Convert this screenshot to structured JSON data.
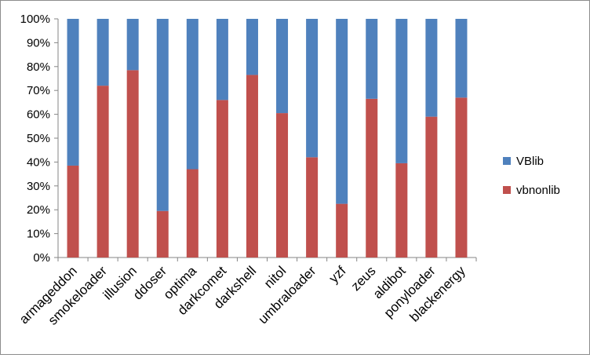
{
  "chart_data": {
    "type": "bar",
    "stacked": true,
    "percent_stacked": true,
    "categories": [
      "armageddon",
      "smokeloader",
      "illusion",
      "ddoser",
      "optima",
      "darkcomet",
      "darkshell",
      "nitol",
      "umbraloader",
      "yzf",
      "zeus",
      "aldibot",
      "ponyloader",
      "blackenergy"
    ],
    "series": [
      {
        "name": "vbnonlib",
        "color": "#c0504d",
        "values": [
          38.5,
          72,
          78.5,
          19.5,
          37,
          66,
          76.5,
          60.5,
          42,
          22.5,
          66.5,
          39.5,
          59,
          67
        ]
      },
      {
        "name": "VBlib",
        "color": "#4f81bd",
        "values": [
          61.5,
          28,
          21.5,
          80.5,
          63,
          34,
          23.5,
          39.5,
          58,
          77.5,
          33.5,
          60.5,
          41,
          33
        ]
      }
    ],
    "ylim": [
      0,
      100
    ],
    "yticks": [
      "0%",
      "10%",
      "20%",
      "30%",
      "40%",
      "50%",
      "60%",
      "70%",
      "80%",
      "90%",
      "100%"
    ],
    "legend": {
      "position": "right",
      "entries": [
        "VBlib",
        "vbnonlib"
      ]
    },
    "grid": false,
    "title": "",
    "xlabel": "",
    "ylabel": ""
  }
}
